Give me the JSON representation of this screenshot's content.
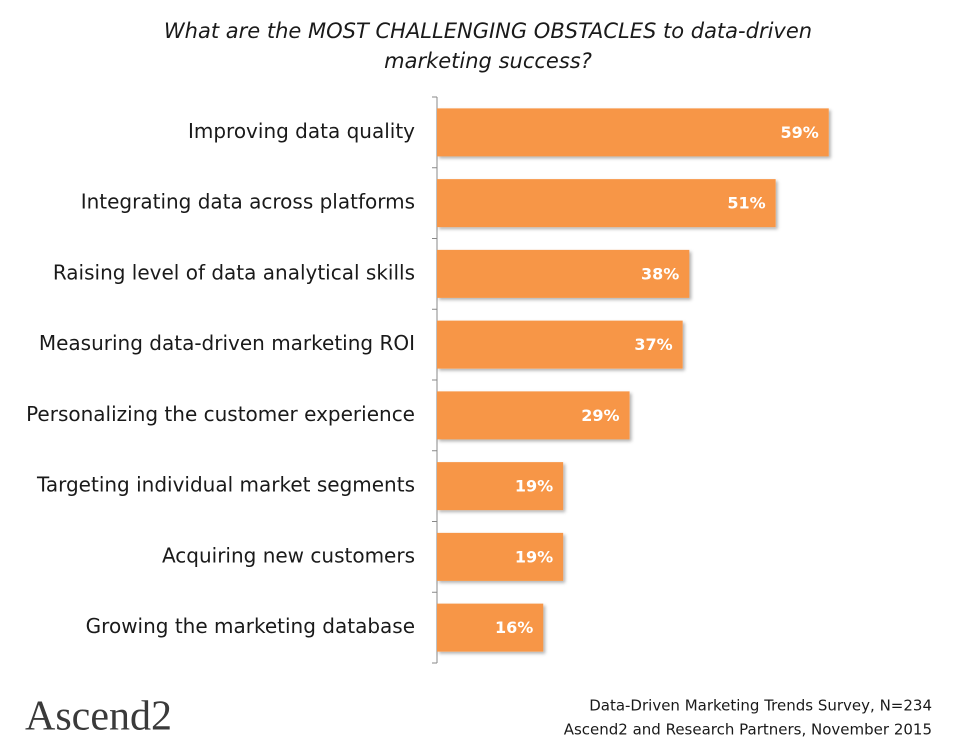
{
  "chart_data": {
    "type": "bar",
    "orientation": "horizontal",
    "title": "What are the MOST CHALLENGING OBSTACLES to data-driven marketing success?",
    "categories": [
      "Improving data quality",
      "Integrating data across platforms",
      "Raising level of data analytical skills",
      "Measuring data-driven marketing ROI",
      "Personalizing the customer experience",
      "Targeting individual market segments",
      "Acquiring new customers",
      "Growing the marketing database"
    ],
    "values": [
      59,
      51,
      38,
      37,
      29,
      19,
      19,
      16
    ],
    "value_labels": [
      "59%",
      "51%",
      "38%",
      "37%",
      "29%",
      "19%",
      "19%",
      "16%"
    ],
    "color": "#f79646"
  },
  "footer": {
    "logo": "Ascend2",
    "source": [
      "Data-Driven Marketing Trends Survey, N=234",
      "Ascend2 and Research Partners, November 2015"
    ]
  }
}
